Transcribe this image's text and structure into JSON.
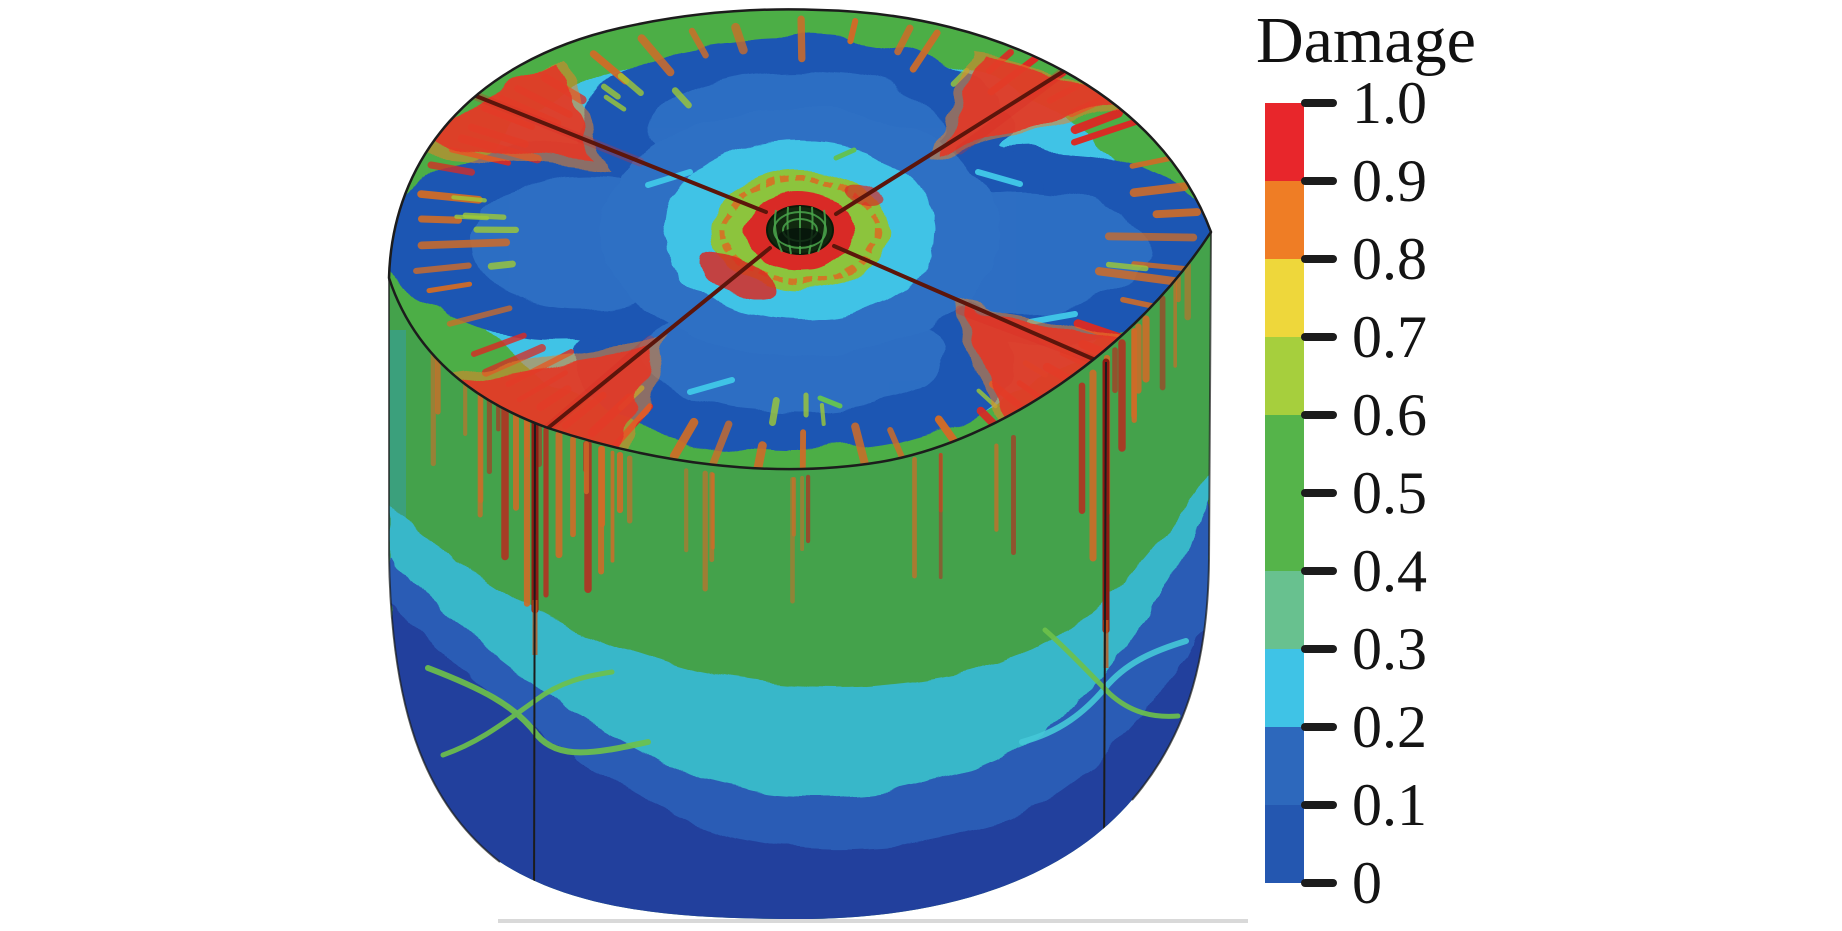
{
  "chart_data": {
    "type": "heatmap",
    "title": "Damage",
    "subject": "3D cylinder specimen damage contour with central borehole and X-shaped crack pattern",
    "legend_position": "right",
    "colorbar": {
      "title": "Damage",
      "orientation": "vertical",
      "range": [
        0,
        1
      ],
      "tick_values": [
        1.0,
        0.9,
        0.8,
        0.7,
        0.6,
        0.5,
        0.4,
        0.3,
        0.2,
        0.1,
        0
      ],
      "tick_labels": [
        "1.0",
        "0.9",
        "0.8",
        "0.7",
        "0.6",
        "0.5",
        "0.4",
        "0.3",
        "0.2",
        "0.1",
        "0"
      ],
      "segments": [
        {
          "from": 0.9,
          "to": 1.0,
          "color": "#e8262b"
        },
        {
          "from": 0.8,
          "to": 0.9,
          "color": "#ef7d25"
        },
        {
          "from": 0.7,
          "to": 0.8,
          "color": "#eed73b"
        },
        {
          "from": 0.6,
          "to": 0.7,
          "color": "#a6cf3d"
        },
        {
          "from": 0.5,
          "to": 0.6,
          "color": "#55b44a"
        },
        {
          "from": 0.4,
          "to": 0.5,
          "color": "#55b44a"
        },
        {
          "from": 0.3,
          "to": 0.4,
          "color": "#68c18f"
        },
        {
          "from": 0.2,
          "to": 0.3,
          "color": "#3fc3e6"
        },
        {
          "from": 0.1,
          "to": 0.2,
          "color": "#2d68bc"
        },
        {
          "from": 0.0,
          "to": 0.1,
          "color": "#2457b0"
        }
      ]
    }
  },
  "scene": {
    "palette": {
      "face_green": "#4cae46",
      "side_green": "#44a24b",
      "cyan": "#3fc3e6",
      "side_cyan": "#38b7c9",
      "clover_blue": "#1d56b3",
      "inner_blue": "#2e70c4",
      "side_blue": "#2a5cb5",
      "side_navy": "#203f9d",
      "crack_red": "#d92b25",
      "crack_dark": "#5c150b",
      "wedge_red": "#e23a26",
      "wedge_orange": "#e8842a",
      "drip_orange": "#cf6c28",
      "drip_red": "#b23222",
      "streak_green": "#9fca37",
      "speckle_green": "#8cc43c",
      "butterfly_green": "#6ec24a",
      "butterfly_cyan": "#45c8d8",
      "borehole_dark": "#11290f",
      "mesh_green": "#4aa54b",
      "shadow_gray": "#d9d9d9",
      "outline": "#1c1c1c",
      "tick_color": "#1c1c1c",
      "background": "#ffffff"
    }
  }
}
